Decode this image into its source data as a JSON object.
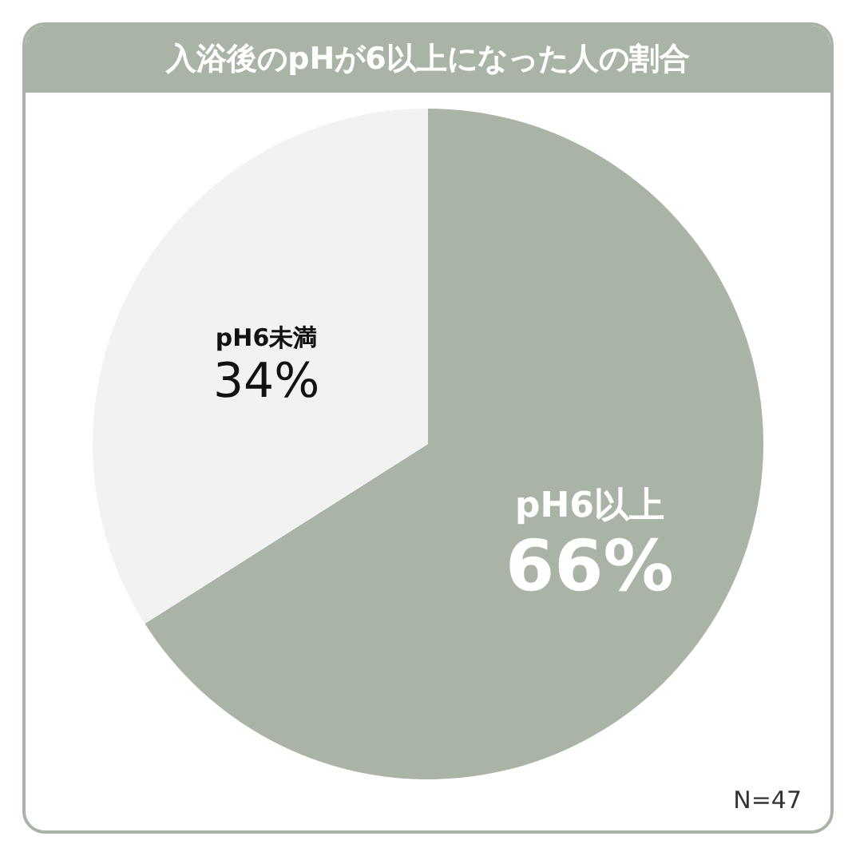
{
  "chart_data": {
    "type": "pie",
    "title": "入浴後のpHが6以上になった人の割合",
    "categories": [
      "pH6以上",
      "pH6未満"
    ],
    "values": [
      66,
      34
    ],
    "colors": [
      "#a9b4a7",
      "#f2f2f2"
    ],
    "value_labels": [
      "66%",
      "34%"
    ],
    "legend": false,
    "annotations": [
      "N=47"
    ]
  }
}
